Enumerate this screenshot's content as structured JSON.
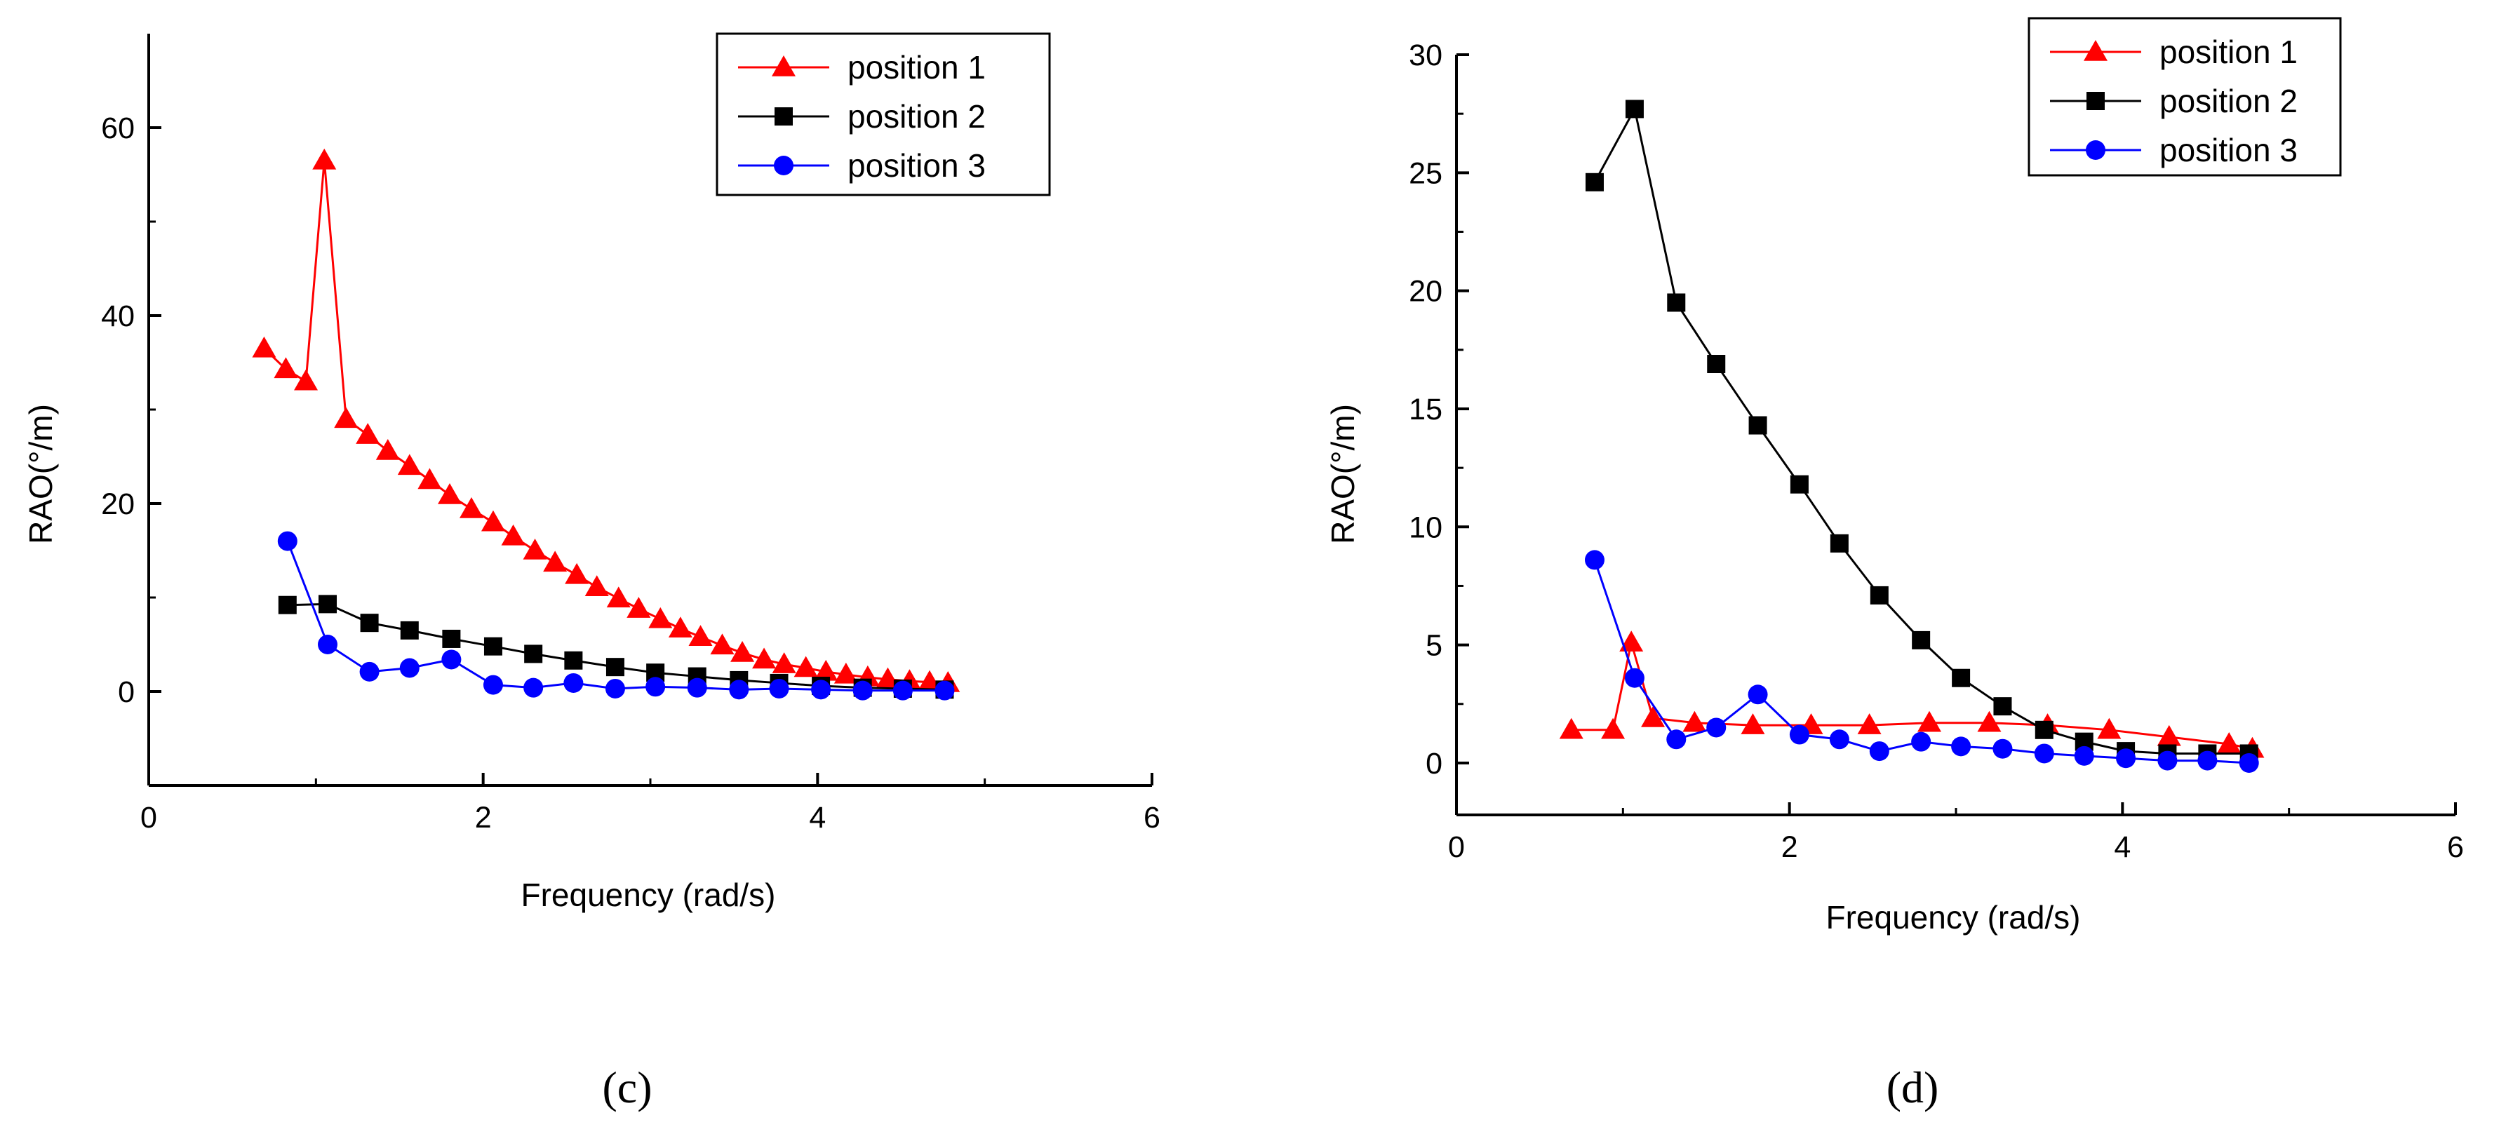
{
  "chart_data": [
    {
      "type": "line",
      "panel_label": "(c)",
      "xlabel": "Frequency (rad/s)",
      "ylabel": "RAO(°/m)",
      "xlim": [
        0,
        6
      ],
      "ylim": [
        -10,
        70
      ],
      "xticks": [
        0,
        2,
        4,
        6
      ],
      "yticks": [
        0,
        20,
        40,
        60
      ],
      "x_tick_labels": [
        "0",
        "2",
        "4",
        "6"
      ],
      "y_tick_labels": [
        "0",
        "20",
        "40",
        "60"
      ],
      "legend": "top-right",
      "series": [
        {
          "name": "position 1",
          "color": "#ff0000",
          "marker": "triangle",
          "x": [
            0.69,
            0.82,
            0.94,
            1.05,
            1.18,
            1.31,
            1.43,
            1.56,
            1.68,
            1.8,
            1.93,
            2.06,
            2.18,
            2.31,
            2.43,
            2.56,
            2.68,
            2.81,
            2.93,
            3.06,
            3.18,
            3.3,
            3.43,
            3.55,
            3.68,
            3.8,
            3.93,
            4.05,
            4.17,
            4.3,
            4.42,
            4.55,
            4.67,
            4.78
          ],
          "y": [
            36.5,
            34.3,
            33.0,
            56.5,
            29.0,
            27.3,
            25.6,
            24.0,
            22.5,
            20.9,
            19.4,
            18.0,
            16.5,
            15.0,
            13.7,
            12.4,
            11.1,
            9.9,
            8.8,
            7.7,
            6.7,
            5.8,
            4.9,
            4.1,
            3.4,
            2.9,
            2.5,
            2.1,
            1.8,
            1.5,
            1.3,
            1.1,
            1.0,
            0.9
          ]
        },
        {
          "name": "position 2",
          "color": "#000000",
          "marker": "square",
          "x": [
            0.83,
            1.07,
            1.32,
            1.56,
            1.81,
            2.06,
            2.3,
            2.54,
            2.79,
            3.03,
            3.28,
            3.53,
            3.77,
            4.02,
            4.27,
            4.51,
            4.76
          ],
          "y": [
            9.2,
            9.3,
            7.3,
            6.5,
            5.6,
            4.8,
            4.0,
            3.3,
            2.6,
            2.0,
            1.6,
            1.2,
            0.9,
            0.6,
            0.4,
            0.3,
            0.2
          ]
        },
        {
          "name": "position 3",
          "color": "#0000ff",
          "marker": "circle",
          "x": [
            0.83,
            1.07,
            1.32,
            1.56,
            1.81,
            2.06,
            2.3,
            2.54,
            2.79,
            3.03,
            3.28,
            3.53,
            3.77,
            4.02,
            4.27,
            4.51,
            4.76
          ],
          "y": [
            16.0,
            5.0,
            2.1,
            2.5,
            3.4,
            0.7,
            0.4,
            0.9,
            0.3,
            0.5,
            0.4,
            0.2,
            0.3,
            0.2,
            0.1,
            0.1,
            0.1
          ]
        }
      ]
    },
    {
      "type": "line",
      "panel_label": "(d)",
      "xlabel": "Frequency (rad/s)",
      "ylabel": "RAO(°/m)",
      "xlim": [
        0,
        6
      ],
      "ylim": [
        -2.2,
        30
      ],
      "xticks": [
        0,
        2,
        4,
        6
      ],
      "yticks": [
        0,
        5,
        10,
        15,
        20,
        25,
        30
      ],
      "x_tick_labels": [
        "0",
        "2",
        "4",
        "6"
      ],
      "y_tick_labels": [
        "0",
        "5",
        "10",
        "15",
        "20",
        "25",
        "30"
      ],
      "legend": "top-right",
      "series": [
        {
          "name": "position 1",
          "color": "#ff0000",
          "marker": "triangle",
          "x": [
            0.69,
            0.94,
            1.05,
            1.18,
            1.43,
            1.78,
            2.13,
            2.48,
            2.84,
            3.2,
            3.55,
            3.92,
            4.28,
            4.64,
            4.78
          ],
          "y": [
            1.4,
            1.4,
            5.1,
            1.9,
            1.7,
            1.6,
            1.6,
            1.6,
            1.7,
            1.7,
            1.6,
            1.4,
            1.1,
            0.8,
            0.6
          ]
        },
        {
          "name": "position 2",
          "color": "#000000",
          "marker": "square",
          "x": [
            0.83,
            1.07,
            1.32,
            1.56,
            1.81,
            2.06,
            2.3,
            2.54,
            2.79,
            3.03,
            3.28,
            3.53,
            3.77,
            4.02,
            4.27,
            4.51,
            4.76
          ],
          "y": [
            24.6,
            27.7,
            19.5,
            16.9,
            14.3,
            11.8,
            9.3,
            7.1,
            5.2,
            3.6,
            2.4,
            1.4,
            0.9,
            0.5,
            0.4,
            0.4,
            0.4
          ]
        },
        {
          "name": "position 3",
          "color": "#0000ff",
          "marker": "circle",
          "x": [
            0.83,
            1.07,
            1.32,
            1.56,
            1.81,
            2.06,
            2.3,
            2.54,
            2.79,
            3.03,
            3.28,
            3.53,
            3.77,
            4.02,
            4.27,
            4.51,
            4.76
          ],
          "y": [
            8.6,
            3.6,
            1.0,
            1.5,
            2.9,
            1.2,
            1.0,
            0.5,
            0.9,
            0.7,
            0.6,
            0.4,
            0.3,
            0.2,
            0.1,
            0.1,
            0.0
          ]
        }
      ]
    }
  ]
}
